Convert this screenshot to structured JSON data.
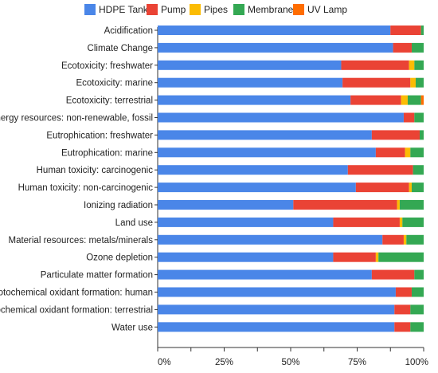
{
  "chart_data": {
    "type": "bar",
    "orientation": "horizontal",
    "stacked": true,
    "title": "",
    "xlabel": "",
    "ylabel": "",
    "xlim": [
      0,
      100
    ],
    "x_ticks": [
      "0%",
      "25%",
      "50%",
      "75%",
      "100%"
    ],
    "legend_position": "top",
    "grid": false,
    "categories": [
      "Acidification",
      "Climate Change",
      "Ecotoxicity: freshwater",
      "Ecotoxicity: marine",
      "Ecotoxicity: terrestrial",
      "Energy resources: non-renewable, fossil",
      "Eutrophication: freshwater",
      "Eutrophication: marine",
      "Human toxicity: carcinogenic",
      "Human toxicity: non-carcinogenic",
      "Ionizing radiation",
      "Land use",
      "Material resources: metals/minerals",
      "Ozone depletion",
      "Particulate matter formation",
      "Photochemical oxidant formation: human",
      "Photochemical oxidant formation: terrestrial",
      "Water use"
    ],
    "series": [
      {
        "name": "HDPE Tank",
        "color": "#4a86e8",
        "values": [
          87.5,
          88.5,
          69,
          69.5,
          72.5,
          92.5,
          80.5,
          82,
          71.5,
          74.5,
          51,
          66,
          84.5,
          66,
          80.5,
          89.5,
          89,
          89
        ]
      },
      {
        "name": "Pump",
        "color": "#ea4335",
        "values": [
          11.5,
          7,
          25.5,
          25.5,
          19,
          4,
          18,
          11,
          24.5,
          20,
          39,
          25,
          8,
          16,
          16,
          6,
          6,
          6
        ]
      },
      {
        "name": "Pipes",
        "color": "#fbbc04",
        "values": [
          0,
          0,
          2,
          2,
          2.5,
          0,
          0,
          2,
          0,
          1,
          1,
          1,
          1,
          1,
          0,
          0,
          0,
          0
        ]
      },
      {
        "name": "Membrane",
        "color": "#34a853",
        "values": [
          1,
          4.5,
          3.5,
          3,
          5,
          3.5,
          1.5,
          5,
          4,
          4.5,
          9,
          8,
          6.5,
          17,
          3.5,
          4.5,
          5,
          5
        ]
      },
      {
        "name": "UV Lamp",
        "color": "#ff6d01",
        "values": [
          0,
          0,
          0,
          0,
          1,
          0,
          0,
          0,
          0,
          0,
          0,
          0,
          0,
          0,
          0,
          0,
          0,
          0
        ]
      }
    ]
  }
}
